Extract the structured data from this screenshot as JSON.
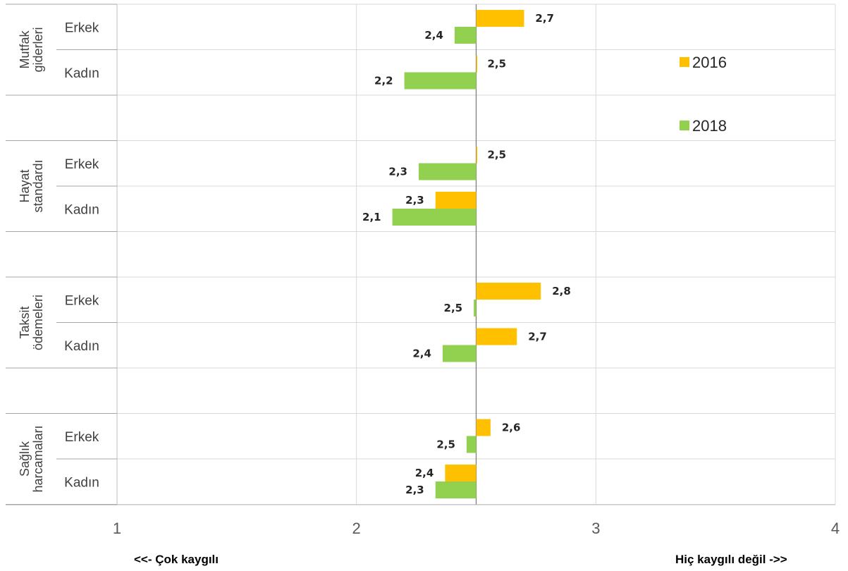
{
  "chart_data": {
    "type": "bar",
    "orientation": "horizontal",
    "groups": [
      {
        "name": "Mutfak giderleri",
        "lines": [
          "Mutfak",
          "giderleri"
        ]
      },
      {
        "name": "Hayat standardı",
        "lines": [
          "Hayat",
          "standardı"
        ]
      },
      {
        "name": "Taksit ödemeleri",
        "lines": [
          "Taksit",
          "ödemeleri"
        ]
      },
      {
        "name": "Sağlık harcamaları",
        "lines": [
          "Sağlık",
          "harcamaları"
        ]
      }
    ],
    "subcategories": [
      "Erkek",
      "Kadın"
    ],
    "series": [
      {
        "name": "2016",
        "color": "#FFC000",
        "values": [
          2.7,
          2.5,
          2.5,
          2.33,
          2.77,
          2.67,
          2.56,
          2.37
        ],
        "labels": [
          "2,7",
          "2,5",
          "2,5",
          "2,3",
          "2,8",
          "2,7",
          "2,6",
          "2,4"
        ]
      },
      {
        "name": "2018",
        "color": "#92D050",
        "values": [
          2.41,
          2.2,
          2.26,
          2.15,
          2.49,
          2.36,
          2.46,
          2.33
        ],
        "labels": [
          "2,4",
          "2,2",
          "2,3",
          "2,1",
          "2,5",
          "2,4",
          "2,5",
          "2,3"
        ]
      }
    ],
    "baseline": 2.5,
    "xlim": [
      1,
      4
    ],
    "xticks": [
      "1",
      "2",
      "3",
      "4"
    ],
    "grid": true,
    "legend_position": "right"
  },
  "axis_notes": {
    "left": "<<- Çok kaygılı",
    "right": "Hiç kaygılı değil ->>"
  }
}
